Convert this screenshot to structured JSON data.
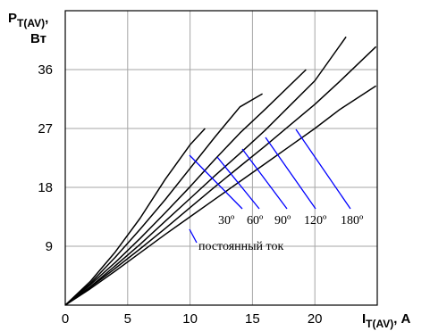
{
  "chart_data": {
    "type": "line",
    "title": "",
    "ylabel": {
      "symbol": "P",
      "subscript": "T(AV)",
      "separator": ",",
      "unit": "Вт"
    },
    "xlabel": {
      "symbol": "I",
      "subscript": "T(AV)",
      "separator": ",",
      "unit": "A"
    },
    "xlim": [
      0,
      25
    ],
    "ylim": [
      0,
      45
    ],
    "x_ticks": [
      "0",
      "5",
      "10",
      "15",
      "20"
    ],
    "x_tick_values": [
      0,
      5,
      10,
      15,
      20
    ],
    "y_ticks": [
      "9",
      "18",
      "27",
      "36"
    ],
    "y_tick_values": [
      9,
      18,
      27,
      36
    ],
    "grid": true,
    "series": [
      {
        "name": "30º",
        "x": [
          0,
          2,
          4,
          6,
          8,
          10,
          11.2
        ],
        "y": [
          0,
          3.6,
          8.1,
          13.3,
          19.2,
          24.5,
          27
        ]
      },
      {
        "name": "60º",
        "x": [
          0,
          2,
          4,
          6,
          8,
          10,
          12,
          14,
          15.8
        ],
        "y": [
          0,
          3.3,
          7.3,
          11.6,
          16.1,
          20.9,
          25.7,
          30.3,
          32.3
        ]
      },
      {
        "name": "90º",
        "x": [
          0,
          2,
          4,
          6,
          8,
          10,
          12,
          14,
          16,
          19.3
        ],
        "y": [
          0,
          3.1,
          6.5,
          10.2,
          14.1,
          18.1,
          22.3,
          26.3,
          29.9,
          36
        ]
      },
      {
        "name": "120º",
        "x": [
          0,
          2,
          4,
          6,
          8,
          10,
          12,
          14,
          16,
          18,
          20,
          22.5
        ],
        "y": [
          0,
          2.8,
          6.0,
          9.3,
          12.8,
          16.3,
          19.8,
          23.2,
          26.7,
          30.5,
          34.3,
          41
        ]
      },
      {
        "name": "180º",
        "x": [
          0,
          2,
          4,
          6,
          8,
          10,
          12,
          14,
          16,
          18,
          20,
          22,
          24.9
        ],
        "y": [
          0,
          2.7,
          5.6,
          8.6,
          11.7,
          14.9,
          18.1,
          21.2,
          24.3,
          27.5,
          30.7,
          34.2,
          39.5
        ]
      },
      {
        "name": "постоянный ток",
        "x": [
          0,
          2,
          4,
          6,
          8,
          10,
          12,
          14,
          16,
          18,
          20,
          22,
          24.9
        ],
        "y": [
          0,
          2.5,
          5.2,
          8.0,
          10.8,
          13.5,
          16.2,
          18.9,
          21.6,
          24.3,
          27.0,
          29.9,
          33.5
        ]
      }
    ],
    "annotations": {
      "angle_labels": [
        "30º",
        "60º",
        "90º",
        "120º",
        "180º"
      ],
      "dc_label": "постоянный ток"
    },
    "colors": {
      "curve": "#000000",
      "leader": "#0000ff",
      "grid": "#a6a6a6",
      "axis": "#000000"
    }
  }
}
